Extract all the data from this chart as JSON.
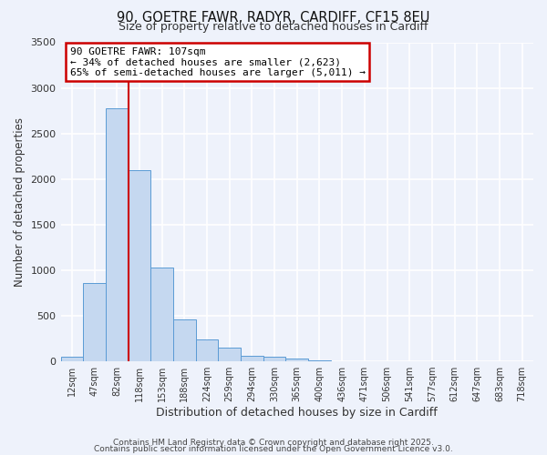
{
  "title": "90, GOETRE FAWR, RADYR, CARDIFF, CF15 8EU",
  "subtitle": "Size of property relative to detached houses in Cardiff",
  "xlabel": "Distribution of detached houses by size in Cardiff",
  "ylabel": "Number of detached properties",
  "bar_color": "#c5d8f0",
  "bar_edge_color": "#5b9bd5",
  "background_color": "#eef2fb",
  "grid_color": "#ffffff",
  "categories": [
    "12sqm",
    "47sqm",
    "82sqm",
    "118sqm",
    "153sqm",
    "188sqm",
    "224sqm",
    "259sqm",
    "294sqm",
    "330sqm",
    "365sqm",
    "400sqm",
    "436sqm",
    "471sqm",
    "506sqm",
    "541sqm",
    "577sqm",
    "612sqm",
    "647sqm",
    "683sqm",
    "718sqm"
  ],
  "values": [
    55,
    855,
    2780,
    2100,
    1030,
    460,
    245,
    150,
    65,
    55,
    30,
    10,
    5,
    2,
    1,
    0,
    0,
    0,
    0,
    0,
    0
  ],
  "ylim": [
    0,
    3500
  ],
  "yticks": [
    0,
    500,
    1000,
    1500,
    2000,
    2500,
    3000,
    3500
  ],
  "property_line_x": 2.5,
  "annotation_title": "90 GOETRE FAWR: 107sqm",
  "annotation_line1": "← 34% of detached houses are smaller (2,623)",
  "annotation_line2": "65% of semi-detached houses are larger (5,011) →",
  "annotation_box_color": "#cc0000",
  "vline_color": "#cc0000",
  "footer1": "Contains HM Land Registry data © Crown copyright and database right 2025.",
  "footer2": "Contains public sector information licensed under the Open Government Licence v3.0."
}
